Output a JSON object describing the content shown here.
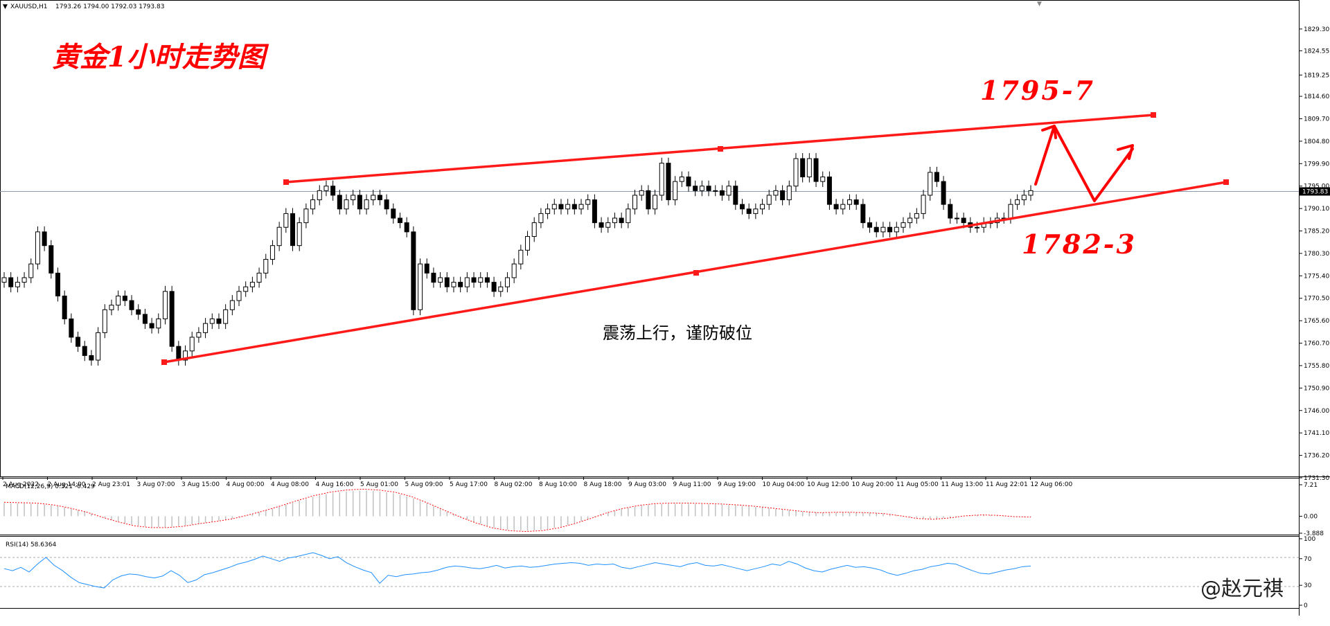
{
  "header": {
    "symbol": "XAUUSD,H1",
    "ohlc": "1793.26 1794.00 1792.03 1793.83"
  },
  "overlay": {
    "title": "黄金1小时走势图",
    "upper_target": "1795-7",
    "lower_target": "1782-3",
    "comment": "震荡上行，谨防破位",
    "watermark": "@赵元祺"
  },
  "colors": {
    "candle_up": "#ffffff",
    "candle_down": "#000000",
    "annotation": "#ff0000",
    "macd_bar": "#c0c0c0",
    "macd_signal": "#ff0000",
    "rsi_line": "#1e90ff",
    "current_price_line": "#8c9ab0"
  },
  "chart_data": [
    {
      "type": "candlestick",
      "title": "XAUUSD,H1",
      "current_price": 1793.83,
      "current_price_label": "1793.83",
      "ylim": [
        1731.3,
        1832.0
      ],
      "y_ticks": [
        "1829.30",
        "1824.55",
        "1819.25",
        "1814.60",
        "1809.70",
        "1804.80",
        "1799.90",
        "1795.00",
        "1790.10",
        "1785.20",
        "1780.30",
        "1775.40",
        "1770.50",
        "1765.60",
        "1760.70",
        "1755.80",
        "1750.90",
        "1746.00",
        "1741.10",
        "1736.20",
        "1731.30"
      ],
      "x_ticks": [
        "2 Aug 2022",
        "2 Aug 14:00",
        "2 Aug 23:01",
        "3 Aug 07:00",
        "3 Aug 15:00",
        "4 Aug 00:00",
        "4 Aug 08:00",
        "4 Aug 16:00",
        "5 Aug 01:00",
        "5 Aug 09:00",
        "5 Aug 17:00",
        "8 Aug 02:00",
        "8 Aug 10:00",
        "8 Aug 18:00",
        "9 Aug 03:00",
        "9 Aug 11:00",
        "9 Aug 19:00",
        "10 Aug 04:00",
        "10 Aug 12:00",
        "10 Aug 20:00",
        "11 Aug 05:00",
        "11 Aug 13:00",
        "11 Aug 22:01",
        "12 Aug 06:00"
      ],
      "closes": [
        1775,
        1773,
        1774,
        1775,
        1778,
        1785,
        1782,
        1776,
        1771,
        1766,
        1762,
        1760,
        1758,
        1757,
        1763,
        1768,
        1769,
        1771,
        1770,
        1768,
        1767,
        1765,
        1764,
        1766,
        1772,
        1760,
        1757,
        1759,
        1762,
        1763,
        1765,
        1766,
        1765,
        1768,
        1770,
        1772,
        1773,
        1774,
        1776,
        1779,
        1782,
        1786,
        1789,
        1782,
        1787,
        1790,
        1792,
        1794,
        1795,
        1793,
        1790,
        1792,
        1793,
        1790,
        1792,
        1793,
        1792,
        1790,
        1788,
        1787,
        1785,
        1768,
        1778,
        1776,
        1774,
        1775,
        1773,
        1774,
        1773,
        1775,
        1774,
        1775,
        1774,
        1772,
        1773,
        1775,
        1778,
        1781,
        1784,
        1787,
        1789,
        1790,
        1791,
        1790,
        1791,
        1790,
        1791,
        1792,
        1787,
        1786,
        1787,
        1788,
        1787,
        1790,
        1793,
        1794,
        1790,
        1793,
        1800,
        1792,
        1796,
        1797,
        1795,
        1794,
        1795,
        1794,
        1794,
        1793,
        1795,
        1791,
        1790,
        1789,
        1790,
        1791,
        1793,
        1794,
        1792,
        1795,
        1801,
        1797,
        1801,
        1796,
        1797,
        1791,
        1790,
        1791,
        1792,
        1791,
        1787,
        1786,
        1785,
        1786,
        1785,
        1786,
        1787,
        1788,
        1789,
        1793,
        1798,
        1796,
        1791,
        1788,
        1788,
        1787,
        1786,
        1786,
        1787,
        1787,
        1788,
        1788,
        1791,
        1792,
        1793,
        1794
      ]
    },
    {
      "type": "line",
      "title": "MACD(12,26,9) 0.321 -0.429",
      "ylim": [
        -3.888,
        7.21
      ],
      "y_ticks": [
        "7.21",
        "0.00",
        "-3.888"
      ],
      "signal": [
        3.2,
        3.1,
        3.0,
        2.6,
        1.9,
        1.0,
        -0.2,
        -1.3,
        -2.2,
        -2.6,
        -2.6,
        -2.3,
        -1.7,
        -1.2,
        -0.6,
        0.3,
        1.3,
        2.4,
        3.6,
        4.7,
        5.5,
        6.0,
        6.2,
        6.0,
        5.5,
        4.5,
        3.0,
        1.4,
        -0.2,
        -1.6,
        -2.7,
        -3.3,
        -3.5,
        -3.3,
        -2.7,
        -1.7,
        -0.5,
        0.8,
        1.8,
        2.5,
        2.9,
        3.0,
        3.0,
        2.9,
        2.8,
        2.6,
        2.3,
        1.9,
        1.5,
        1.1,
        0.8,
        0.9,
        0.9,
        0.8,
        0.6,
        0.1,
        -0.5,
        -0.7,
        -0.4,
        0.1,
        0.3,
        0.2,
        -0.1,
        -0.2
      ]
    },
    {
      "type": "line",
      "title": "RSI(14) 58.6364",
      "ylim": [
        0,
        100
      ],
      "y_ticks": [
        "100",
        "70",
        "30",
        "0"
      ],
      "values": [
        55,
        52,
        57,
        50,
        62,
        72,
        60,
        52,
        42,
        34,
        31,
        28,
        26,
        38,
        44,
        47,
        46,
        43,
        41,
        44,
        52,
        45,
        34,
        38,
        46,
        49,
        53,
        57,
        62,
        65,
        69,
        74,
        70,
        66,
        71,
        73,
        76,
        79,
        75,
        70,
        73,
        64,
        58,
        53,
        49,
        33,
        45,
        43,
        46,
        47,
        49,
        50,
        53,
        57,
        59,
        58,
        56,
        55,
        57,
        60,
        56,
        58,
        59,
        57,
        58,
        60,
        62,
        63,
        64,
        63,
        60,
        62,
        61,
        62,
        57,
        55,
        58,
        61,
        64,
        62,
        60,
        58,
        62,
        64,
        60,
        59,
        61,
        58,
        55,
        52,
        55,
        58,
        62,
        60,
        66,
        62,
        56,
        52,
        50,
        54,
        57,
        60,
        57,
        58,
        56,
        53,
        48,
        45,
        48,
        52,
        54,
        58,
        60,
        63,
        62,
        57,
        52,
        48,
        47,
        50,
        53,
        55,
        58,
        59
      ]
    }
  ]
}
